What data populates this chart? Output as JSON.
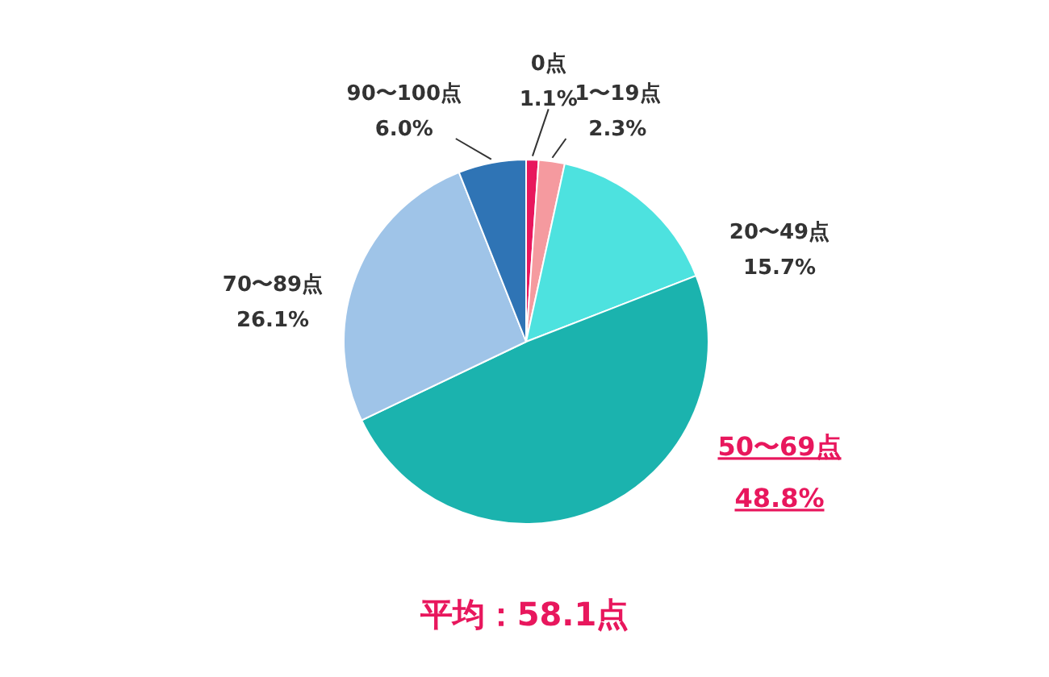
{
  "chart_data": {
    "type": "pie",
    "categories": [
      "0点",
      "1〜19点",
      "20〜49点",
      "50〜69点",
      "70〜89点",
      "90〜100点"
    ],
    "values": [
      1.1,
      2.3,
      15.7,
      48.8,
      26.1,
      6.0
    ],
    "value_labels": [
      "1.1%",
      "2.3%",
      "15.7%",
      "48.8%",
      "26.1%",
      "6.0%"
    ],
    "colors": [
      "#e8175d",
      "#f59a9f",
      "#4de2df",
      "#1bb3ae",
      "#9fc4e8",
      "#2f74b5"
    ],
    "annotations": [
      "平均：58.1点"
    ],
    "legend": false
  }
}
